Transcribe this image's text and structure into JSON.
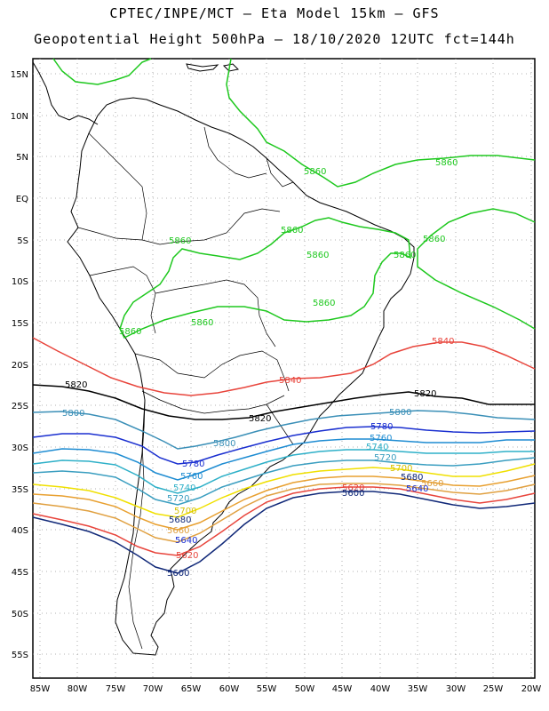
{
  "title": {
    "line1": "CPTEC/INPE/MCT –  Eta Model 15km – GFS",
    "line2": "Geopotential Height 500hPa – 18/10/2020 12UTC fct=144h"
  },
  "map": {
    "lat_range": [
      15,
      -58
    ],
    "lon_range": [
      -86,
      -20
    ],
    "lat_ticks": [
      "15N",
      "10N",
      "5N",
      "EQ",
      "5S",
      "10S",
      "15S",
      "20S",
      "25S",
      "30S",
      "35S",
      "40S",
      "45S",
      "50S",
      "55S"
    ],
    "lon_ticks": [
      "85W",
      "80W",
      "75W",
      "70W",
      "65W",
      "60W",
      "55W",
      "50W",
      "45W",
      "40W",
      "35W",
      "30W",
      "25W",
      "20W"
    ]
  },
  "colors": {
    "c5860": "#1ec81e",
    "c5840": "#e8453c",
    "c5820": "#000000",
    "c5800": "#3a8fb7",
    "c5780": "#1a2fd0",
    "c5760": "#1e8cd2",
    "c5740": "#2eb0c8",
    "c5720": "#3a9ec0",
    "c5700": "#f0e000",
    "c5680": "#e8a030",
    "c5660": "#e0a040",
    "c5620": "#e8453c",
    "c5600": "#102878"
  },
  "labels": {
    "v5860": "5860",
    "v5840": "5840",
    "v5820": "5820",
    "v5800": "5800",
    "v5780": "5780",
    "v5760": "5760",
    "v5740": "5740",
    "v5720": "5720",
    "v5700": "5700",
    "v5680": "5680",
    "v5660": "5660",
    "v5640": "5640",
    "v5620": "5620",
    "v5600": "5600"
  }
}
